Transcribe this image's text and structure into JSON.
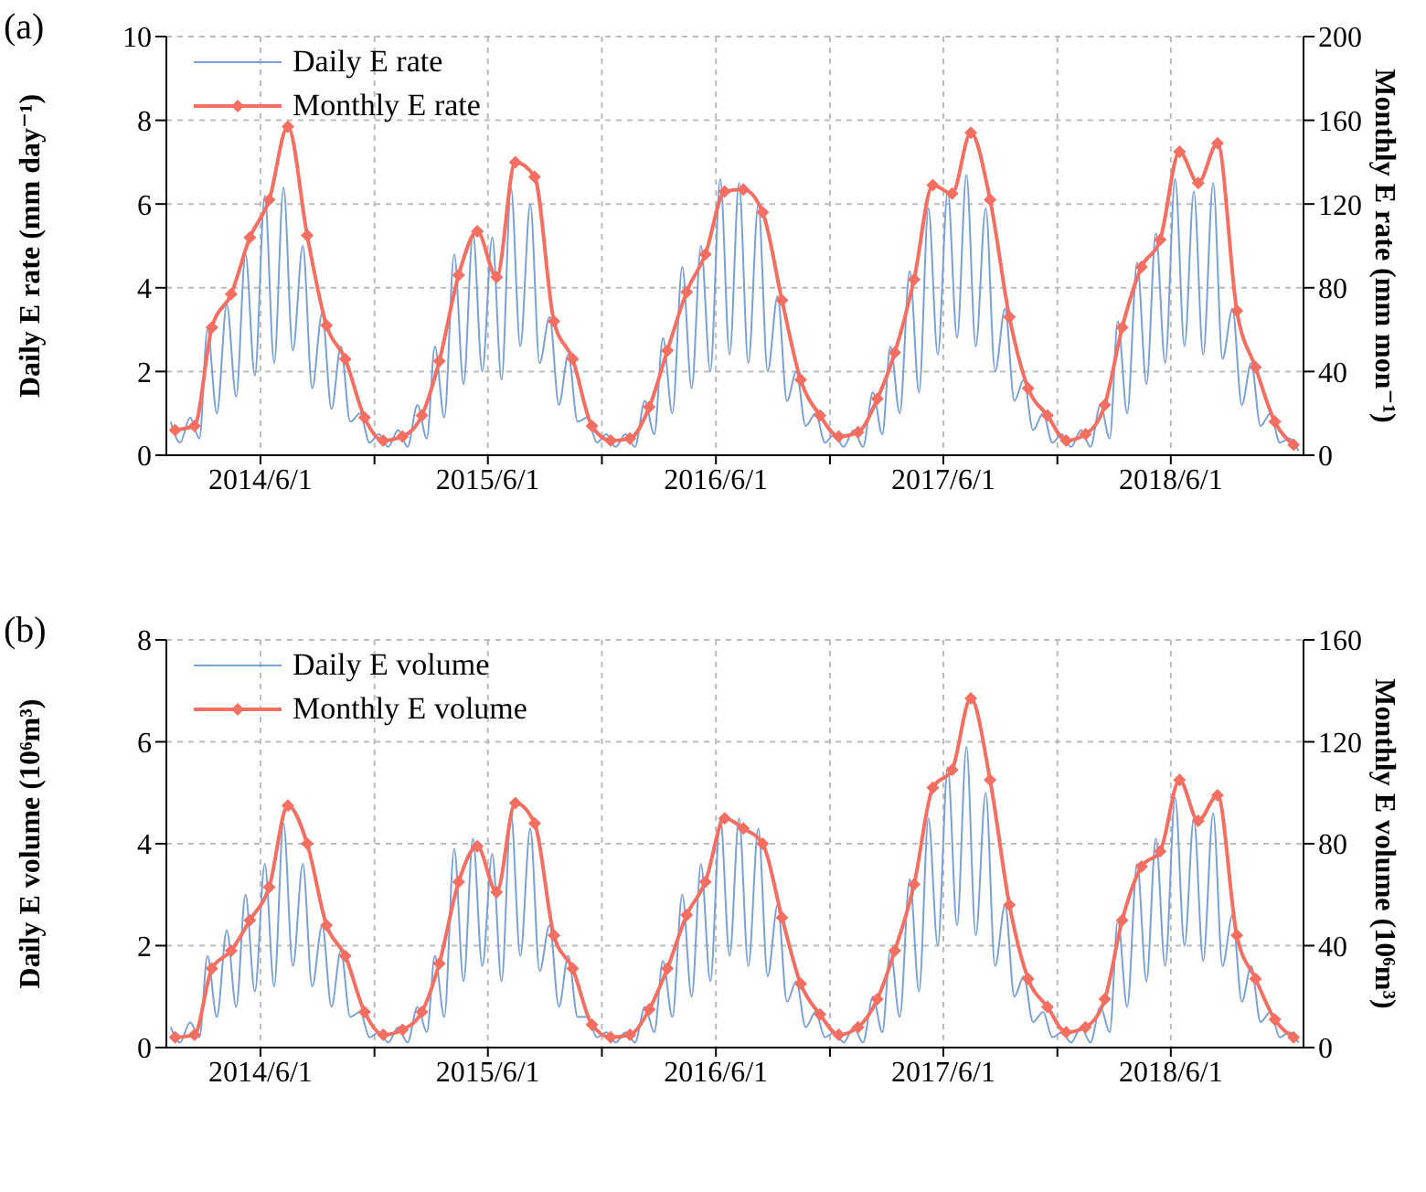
{
  "chart_data": [
    {
      "type": "line",
      "title": "(a)",
      "ylabel": "Daily E rate (mm day⁻¹)",
      "y2label": "Monthly E rate (mm mon⁻¹)",
      "xlim": [
        "2014-01-01",
        "2018-12-31"
      ],
      "xticks": [
        {
          "value": "2014-06-01",
          "label": "2014/6/1"
        },
        {
          "value": "2014-12-01",
          "label": null
        },
        {
          "value": "2015-06-01",
          "label": "2015/6/1"
        },
        {
          "value": "2015-12-01",
          "label": null
        },
        {
          "value": "2016-06-01",
          "label": "2016/6/1"
        },
        {
          "value": "2016-12-01",
          "label": null
        },
        {
          "value": "2017-06-01",
          "label": "2017/6/1"
        },
        {
          "value": "2017-12-01",
          "label": null
        },
        {
          "value": "2018-06-01",
          "label": "2018/6/1"
        }
      ],
      "ylim": [
        0,
        10
      ],
      "yticks": [
        0,
        2,
        4,
        6,
        8,
        10
      ],
      "y2lim": [
        0,
        200
      ],
      "y2ticks": [
        0,
        40,
        80,
        120,
        160,
        200
      ],
      "grid": true,
      "legend": "top left",
      "series": [
        {
          "name": "Daily E rate",
          "color": "#7aa0d8",
          "marker": "none",
          "x": [
            "2014-01-08",
            "2014-01-23",
            "2014-02-08",
            "2014-02-23",
            "2014-03-08",
            "2014-03-23",
            "2014-04-08",
            "2014-04-23",
            "2014-05-08",
            "2014-05-23",
            "2014-06-08",
            "2014-06-23",
            "2014-07-08",
            "2014-07-23",
            "2014-08-08",
            "2014-08-23",
            "2014-09-08",
            "2014-09-23",
            "2014-10-08",
            "2014-10-23",
            "2014-11-08",
            "2014-11-23",
            "2014-12-08",
            "2014-12-23",
            "2015-01-08",
            "2015-01-23",
            "2015-02-08",
            "2015-02-23",
            "2015-03-08",
            "2015-03-23",
            "2015-04-08",
            "2015-04-23",
            "2015-05-08",
            "2015-05-23",
            "2015-06-08",
            "2015-06-23",
            "2015-07-08",
            "2015-07-23",
            "2015-08-08",
            "2015-08-23",
            "2015-09-08",
            "2015-09-23",
            "2015-10-08",
            "2015-10-23",
            "2015-11-08",
            "2015-11-23",
            "2015-12-08",
            "2015-12-23",
            "2016-01-08",
            "2016-01-23",
            "2016-02-08",
            "2016-02-23",
            "2016-03-08",
            "2016-03-23",
            "2016-04-08",
            "2016-04-23",
            "2016-05-08",
            "2016-05-23",
            "2016-06-08",
            "2016-06-23",
            "2016-07-08",
            "2016-07-23",
            "2016-08-08",
            "2016-08-23",
            "2016-09-08",
            "2016-09-23",
            "2016-10-08",
            "2016-10-23",
            "2016-11-08",
            "2016-11-23",
            "2016-12-08",
            "2016-12-23",
            "2017-01-08",
            "2017-01-23",
            "2017-02-08",
            "2017-02-23",
            "2017-03-08",
            "2017-03-23",
            "2017-04-08",
            "2017-04-23",
            "2017-05-08",
            "2017-05-23",
            "2017-06-08",
            "2017-06-23",
            "2017-07-08",
            "2017-07-23",
            "2017-08-08",
            "2017-08-23",
            "2017-09-08",
            "2017-09-23",
            "2017-10-08",
            "2017-10-23",
            "2017-11-08",
            "2017-11-23",
            "2017-12-08",
            "2017-12-23",
            "2018-01-08",
            "2018-01-23",
            "2018-02-08",
            "2018-02-23",
            "2018-03-08",
            "2018-03-23",
            "2018-04-08",
            "2018-04-23",
            "2018-05-08",
            "2018-05-23",
            "2018-06-08",
            "2018-06-23",
            "2018-07-08",
            "2018-07-23",
            "2018-08-08",
            "2018-08-23",
            "2018-09-08",
            "2018-09-23",
            "2018-10-08",
            "2018-10-23",
            "2018-11-08",
            "2018-11-23",
            "2018-12-08",
            "2018-12-23"
          ],
          "values": [
            0.8,
            0.3,
            0.9,
            0.4,
            3.0,
            1.0,
            3.6,
            1.4,
            4.8,
            1.9,
            6.2,
            2.2,
            6.4,
            2.5,
            5.0,
            1.6,
            3.4,
            1.1,
            2.6,
            0.8,
            1.0,
            0.3,
            0.5,
            0.2,
            0.6,
            0.2,
            1.2,
            0.4,
            2.6,
            0.9,
            4.8,
            1.7,
            5.3,
            2.0,
            5.2,
            1.8,
            6.4,
            2.6,
            6.0,
            2.2,
            3.3,
            1.2,
            2.4,
            0.8,
            0.9,
            0.3,
            0.5,
            0.2,
            0.5,
            0.2,
            1.3,
            0.5,
            2.8,
            1.0,
            4.5,
            1.6,
            5.0,
            2.0,
            6.6,
            2.4,
            6.5,
            2.2,
            6.0,
            2.0,
            3.8,
            1.3,
            2.0,
            0.7,
            1.0,
            0.3,
            0.5,
            0.2,
            0.6,
            0.2,
            1.5,
            0.5,
            2.6,
            1.0,
            4.4,
            1.5,
            5.9,
            2.4,
            6.3,
            2.8,
            6.7,
            2.6,
            5.9,
            2.0,
            3.5,
            1.3,
            1.8,
            0.6,
            1.0,
            0.3,
            0.5,
            0.2,
            0.6,
            0.2,
            1.2,
            0.4,
            3.2,
            1.0,
            4.6,
            1.7,
            5.3,
            2.2,
            6.6,
            2.6,
            6.3,
            2.4,
            6.5,
            2.3,
            3.5,
            1.2,
            2.2,
            0.7,
            1.0,
            0.3,
            0.4,
            0.1
          ]
        },
        {
          "name": "Monthly E rate",
          "color": "#f46f62",
          "marker": "diamond",
          "axis": "y2",
          "x": [
            "2014-01-15",
            "2014-02-15",
            "2014-03-15",
            "2014-04-15",
            "2014-05-15",
            "2014-06-15",
            "2014-07-15",
            "2014-08-15",
            "2014-09-15",
            "2014-10-15",
            "2014-11-15",
            "2014-12-15",
            "2015-01-15",
            "2015-02-15",
            "2015-03-15",
            "2015-04-15",
            "2015-05-15",
            "2015-06-15",
            "2015-07-15",
            "2015-08-15",
            "2015-09-15",
            "2015-10-15",
            "2015-11-15",
            "2015-12-15",
            "2016-01-15",
            "2016-02-15",
            "2016-03-15",
            "2016-04-15",
            "2016-05-15",
            "2016-06-15",
            "2016-07-15",
            "2016-08-15",
            "2016-09-15",
            "2016-10-15",
            "2016-11-15",
            "2016-12-15",
            "2017-01-15",
            "2017-02-15",
            "2017-03-15",
            "2017-04-15",
            "2017-05-15",
            "2017-06-15",
            "2017-07-15",
            "2017-08-15",
            "2017-09-15",
            "2017-10-15",
            "2017-11-15",
            "2017-12-15",
            "2018-01-15",
            "2018-02-15",
            "2018-03-15",
            "2018-04-15",
            "2018-05-15",
            "2018-06-15",
            "2018-07-15",
            "2018-08-15",
            "2018-09-15",
            "2018-10-15",
            "2018-11-15",
            "2018-12-15"
          ],
          "values": [
            12,
            14,
            61,
            77,
            104,
            122,
            157,
            105,
            62,
            46,
            18,
            7,
            9,
            19,
            45,
            86,
            107,
            85,
            140,
            133,
            64,
            46,
            14,
            7,
            8,
            23,
            50,
            78,
            96,
            126,
            127,
            116,
            74,
            36,
            19,
            9,
            11,
            27,
            49,
            84,
            129,
            125,
            154,
            122,
            66,
            32,
            19,
            7,
            10,
            24,
            61,
            90,
            103,
            145,
            130,
            149,
            69,
            42,
            16,
            5
          ]
        }
      ]
    },
    {
      "type": "line",
      "title": "(b)",
      "ylabel": "Daily E volume (10⁶m³)",
      "y2label": "Monthly E volume (10⁶m³)",
      "xlim": [
        "2014-01-01",
        "2018-12-31"
      ],
      "xticks": [
        {
          "value": "2014-06-01",
          "label": "2014/6/1"
        },
        {
          "value": "2014-12-01",
          "label": null
        },
        {
          "value": "2015-06-01",
          "label": "2015/6/1"
        },
        {
          "value": "2015-12-01",
          "label": null
        },
        {
          "value": "2016-06-01",
          "label": "2016/6/1"
        },
        {
          "value": "2016-12-01",
          "label": null
        },
        {
          "value": "2017-06-01",
          "label": "2017/6/1"
        },
        {
          "value": "2017-12-01",
          "label": null
        },
        {
          "value": "2018-06-01",
          "label": "2018/6/1"
        }
      ],
      "ylim": [
        0,
        8
      ],
      "yticks": [
        0,
        2,
        4,
        6,
        8
      ],
      "y2lim": [
        0,
        160
      ],
      "y2ticks": [
        0,
        40,
        80,
        120,
        160
      ],
      "grid": true,
      "legend": "top left",
      "series": [
        {
          "name": "Daily E volume",
          "color": "#7aa0d8",
          "marker": "none",
          "x": [
            "2014-01-08",
            "2014-01-23",
            "2014-02-08",
            "2014-02-23",
            "2014-03-08",
            "2014-03-23",
            "2014-04-08",
            "2014-04-23",
            "2014-05-08",
            "2014-05-23",
            "2014-06-08",
            "2014-06-23",
            "2014-07-08",
            "2014-07-23",
            "2014-08-08",
            "2014-08-23",
            "2014-09-08",
            "2014-09-23",
            "2014-10-08",
            "2014-10-23",
            "2014-11-08",
            "2014-11-23",
            "2014-12-08",
            "2014-12-23",
            "2015-01-08",
            "2015-01-23",
            "2015-02-08",
            "2015-02-23",
            "2015-03-08",
            "2015-03-23",
            "2015-04-08",
            "2015-04-23",
            "2015-05-08",
            "2015-05-23",
            "2015-06-08",
            "2015-06-23",
            "2015-07-08",
            "2015-07-23",
            "2015-08-08",
            "2015-08-23",
            "2015-09-08",
            "2015-09-23",
            "2015-10-08",
            "2015-10-23",
            "2015-11-08",
            "2015-11-23",
            "2015-12-08",
            "2015-12-23",
            "2016-01-08",
            "2016-01-23",
            "2016-02-08",
            "2016-02-23",
            "2016-03-08",
            "2016-03-23",
            "2016-04-08",
            "2016-04-23",
            "2016-05-08",
            "2016-05-23",
            "2016-06-08",
            "2016-06-23",
            "2016-07-08",
            "2016-07-23",
            "2016-08-08",
            "2016-08-23",
            "2016-09-08",
            "2016-09-23",
            "2016-10-08",
            "2016-10-23",
            "2016-11-08",
            "2016-11-23",
            "2016-12-08",
            "2016-12-23",
            "2017-01-08",
            "2017-01-23",
            "2017-02-08",
            "2017-02-23",
            "2017-03-08",
            "2017-03-23",
            "2017-04-08",
            "2017-04-23",
            "2017-05-08",
            "2017-05-23",
            "2017-06-08",
            "2017-06-23",
            "2017-07-08",
            "2017-07-23",
            "2017-08-08",
            "2017-08-23",
            "2017-09-08",
            "2017-09-23",
            "2017-10-08",
            "2017-10-23",
            "2017-11-08",
            "2017-11-23",
            "2017-12-08",
            "2017-12-23",
            "2018-01-08",
            "2018-01-23",
            "2018-02-08",
            "2018-02-23",
            "2018-03-08",
            "2018-03-23",
            "2018-04-08",
            "2018-04-23",
            "2018-05-08",
            "2018-05-23",
            "2018-06-08",
            "2018-06-23",
            "2018-07-08",
            "2018-07-23",
            "2018-08-08",
            "2018-08-23",
            "2018-09-08",
            "2018-09-23",
            "2018-10-08",
            "2018-10-23",
            "2018-11-08",
            "2018-11-23",
            "2018-12-08",
            "2018-12-23"
          ],
          "values": [
            0.4,
            0.1,
            0.5,
            0.2,
            1.8,
            0.6,
            2.3,
            0.8,
            3.0,
            1.1,
            3.6,
            1.2,
            4.4,
            1.6,
            3.6,
            1.2,
            2.4,
            0.8,
            1.9,
            0.6,
            0.7,
            0.2,
            0.3,
            0.1,
            0.4,
            0.1,
            0.8,
            0.3,
            1.8,
            0.6,
            3.9,
            1.3,
            4.1,
            1.6,
            3.8,
            1.3,
            4.6,
            1.8,
            4.3,
            1.5,
            2.4,
            0.8,
            1.8,
            0.6,
            0.6,
            0.2,
            0.3,
            0.1,
            0.3,
            0.1,
            0.8,
            0.3,
            1.7,
            0.6,
            3.0,
            1.0,
            3.6,
            1.3,
            4.5,
            1.8,
            4.5,
            1.6,
            4.3,
            1.4,
            2.8,
            0.9,
            1.3,
            0.4,
            0.7,
            0.2,
            0.3,
            0.1,
            0.4,
            0.1,
            1.0,
            0.3,
            1.9,
            0.6,
            3.3,
            1.1,
            4.5,
            2.0,
            5.5,
            2.4,
            5.9,
            2.2,
            5.0,
            1.6,
            2.8,
            1.0,
            1.4,
            0.5,
            0.7,
            0.2,
            0.3,
            0.1,
            0.4,
            0.1,
            0.8,
            0.3,
            2.5,
            0.8,
            3.6,
            1.3,
            4.1,
            1.6,
            4.9,
            2.0,
            4.5,
            1.7,
            4.6,
            1.6,
            2.6,
            0.9,
            1.6,
            0.5,
            0.7,
            0.2,
            0.3,
            0.1
          ]
        },
        {
          "name": "Monthly E volume",
          "color": "#f46f62",
          "marker": "diamond",
          "axis": "y2",
          "x": [
            "2014-01-15",
            "2014-02-15",
            "2014-03-15",
            "2014-04-15",
            "2014-05-15",
            "2014-06-15",
            "2014-07-15",
            "2014-08-15",
            "2014-09-15",
            "2014-10-15",
            "2014-11-15",
            "2014-12-15",
            "2015-01-15",
            "2015-02-15",
            "2015-03-15",
            "2015-04-15",
            "2015-05-15",
            "2015-06-15",
            "2015-07-15",
            "2015-08-15",
            "2015-09-15",
            "2015-10-15",
            "2015-11-15",
            "2015-12-15",
            "2016-01-15",
            "2016-02-15",
            "2016-03-15",
            "2016-04-15",
            "2016-05-15",
            "2016-06-15",
            "2016-07-15",
            "2016-08-15",
            "2016-09-15",
            "2016-10-15",
            "2016-11-15",
            "2016-12-15",
            "2017-01-15",
            "2017-02-15",
            "2017-03-15",
            "2017-04-15",
            "2017-05-15",
            "2017-06-15",
            "2017-07-15",
            "2017-08-15",
            "2017-09-15",
            "2017-10-15",
            "2017-11-15",
            "2017-12-15",
            "2018-01-15",
            "2018-02-15",
            "2018-03-15",
            "2018-04-15",
            "2018-05-15",
            "2018-06-15",
            "2018-07-15",
            "2018-08-15",
            "2018-09-15",
            "2018-10-15",
            "2018-11-15",
            "2018-12-15"
          ],
          "values": [
            4,
            5,
            31,
            38,
            50,
            63,
            95,
            80,
            48,
            36,
            14,
            5,
            7,
            14,
            33,
            65,
            79,
            61,
            96,
            88,
            44,
            31,
            9,
            4,
            5,
            15,
            31,
            52,
            65,
            90,
            86,
            80,
            51,
            25,
            13,
            5,
            8,
            19,
            38,
            64,
            102,
            109,
            137,
            105,
            56,
            27,
            16,
            6,
            8,
            19,
            50,
            71,
            77,
            105,
            89,
            99,
            44,
            27,
            11,
            4
          ]
        }
      ]
    }
  ]
}
